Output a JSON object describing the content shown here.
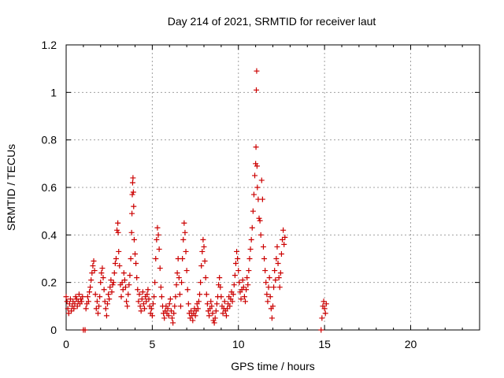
{
  "chart_data": {
    "type": "scatter",
    "title": "Day 214 of 2021, SRMTID for receiver laut",
    "xlabel": "GPS time / hours",
    "ylabel": "SRMTID / TECUs",
    "xlim": [
      0,
      24
    ],
    "ylim": [
      0,
      1.2
    ],
    "xticks": [
      0,
      5,
      10,
      15,
      20
    ],
    "yticks": [
      0,
      0.2,
      0.4,
      0.6,
      0.8,
      1,
      1.2
    ],
    "ytick_labels": [
      "0",
      "0.2",
      "0.4",
      "0.6",
      "0.8",
      "1",
      "1.2"
    ],
    "grid": true,
    "series": [
      {
        "name": "SRMTID",
        "color": "#cc0000",
        "marker": "plus",
        "points": [
          [
            0.0,
            0.14
          ],
          [
            0.05,
            0.12
          ],
          [
            0.1,
            0.09
          ],
          [
            0.15,
            0.07
          ],
          [
            0.2,
            0.11
          ],
          [
            0.25,
            0.13
          ],
          [
            0.3,
            0.08
          ],
          [
            0.35,
            0.1
          ],
          [
            0.4,
            0.12
          ],
          [
            0.45,
            0.09
          ],
          [
            0.5,
            0.11
          ],
          [
            0.55,
            0.14
          ],
          [
            0.6,
            0.13
          ],
          [
            0.65,
            0.1
          ],
          [
            0.7,
            0.12
          ],
          [
            0.75,
            0.15
          ],
          [
            0.8,
            0.11
          ],
          [
            0.85,
            0.13
          ],
          [
            0.9,
            0.12
          ],
          [
            0.95,
            0.14
          ],
          [
            1.0,
            0.0
          ],
          [
            1.1,
            0.0
          ],
          [
            1.15,
            0.09
          ],
          [
            1.2,
            0.11
          ],
          [
            1.25,
            0.14
          ],
          [
            1.3,
            0.12
          ],
          [
            1.35,
            0.16
          ],
          [
            1.4,
            0.18
          ],
          [
            1.45,
            0.21
          ],
          [
            1.5,
            0.24
          ],
          [
            1.55,
            0.27
          ],
          [
            1.6,
            0.29
          ],
          [
            1.65,
            0.25
          ],
          [
            1.7,
            0.15
          ],
          [
            1.75,
            0.09
          ],
          [
            1.8,
            0.12
          ],
          [
            1.85,
            0.07
          ],
          [
            1.9,
            0.1
          ],
          [
            1.95,
            0.14
          ],
          [
            2.0,
            0.2
          ],
          [
            2.05,
            0.24
          ],
          [
            2.1,
            0.26
          ],
          [
            2.15,
            0.22
          ],
          [
            2.2,
            0.17
          ],
          [
            2.25,
            0.12
          ],
          [
            2.3,
            0.09
          ],
          [
            2.35,
            0.06
          ],
          [
            2.4,
            0.11
          ],
          [
            2.45,
            0.15
          ],
          [
            2.5,
            0.13
          ],
          [
            2.55,
            0.18
          ],
          [
            2.6,
            0.21
          ],
          [
            2.65,
            0.16
          ],
          [
            2.7,
            0.19
          ],
          [
            2.75,
            0.2
          ],
          [
            2.8,
            0.24
          ],
          [
            2.85,
            0.28
          ],
          [
            2.9,
            0.3
          ],
          [
            2.95,
            0.42
          ],
          [
            3.0,
            0.45
          ],
          [
            3.02,
            0.41
          ],
          [
            3.05,
            0.33
          ],
          [
            3.1,
            0.27
          ],
          [
            3.15,
            0.19
          ],
          [
            3.2,
            0.14
          ],
          [
            3.25,
            0.2
          ],
          [
            3.3,
            0.17
          ],
          [
            3.35,
            0.24
          ],
          [
            3.4,
            0.21
          ],
          [
            3.45,
            0.18
          ],
          [
            3.5,
            0.12
          ],
          [
            3.55,
            0.1
          ],
          [
            3.6,
            0.15
          ],
          [
            3.65,
            0.19
          ],
          [
            3.7,
            0.23
          ],
          [
            3.75,
            0.3
          ],
          [
            3.8,
            0.41
          ],
          [
            3.82,
            0.49
          ],
          [
            3.84,
            0.57
          ],
          [
            3.86,
            0.62
          ],
          [
            3.88,
            0.64
          ],
          [
            3.9,
            0.58
          ],
          [
            3.92,
            0.52
          ],
          [
            3.95,
            0.38
          ],
          [
            4.0,
            0.32
          ],
          [
            4.05,
            0.28
          ],
          [
            4.1,
            0.22
          ],
          [
            4.15,
            0.17
          ],
          [
            4.2,
            0.12
          ],
          [
            4.25,
            0.15
          ],
          [
            4.3,
            0.1
          ],
          [
            4.35,
            0.08
          ],
          [
            4.4,
            0.13
          ],
          [
            4.45,
            0.16
          ],
          [
            4.5,
            0.11
          ],
          [
            4.55,
            0.09
          ],
          [
            4.6,
            0.14
          ],
          [
            4.65,
            0.12
          ],
          [
            4.7,
            0.15
          ],
          [
            4.75,
            0.17
          ],
          [
            4.8,
            0.13
          ],
          [
            4.85,
            0.1
          ],
          [
            4.9,
            0.07
          ],
          [
            4.95,
            0.09
          ],
          [
            5.0,
            0.06
          ],
          [
            5.05,
            0.11
          ],
          [
            5.1,
            0.14
          ],
          [
            5.15,
            0.2
          ],
          [
            5.2,
            0.3
          ],
          [
            5.25,
            0.38
          ],
          [
            5.3,
            0.43
          ],
          [
            5.35,
            0.4
          ],
          [
            5.4,
            0.34
          ],
          [
            5.45,
            0.26
          ],
          [
            5.5,
            0.18
          ],
          [
            5.55,
            0.14
          ],
          [
            5.6,
            0.1
          ],
          [
            5.65,
            0.07
          ],
          [
            5.7,
            0.05
          ],
          [
            5.75,
            0.08
          ],
          [
            5.8,
            0.1
          ],
          [
            5.85,
            0.07
          ],
          [
            5.9,
            0.09
          ],
          [
            5.95,
            0.06
          ],
          [
            6.0,
            0.11
          ],
          [
            6.05,
            0.13
          ],
          [
            6.1,
            0.08
          ],
          [
            6.15,
            0.05
          ],
          [
            6.2,
            0.03
          ],
          [
            6.25,
            0.07
          ],
          [
            6.3,
            0.1
          ],
          [
            6.35,
            0.14
          ],
          [
            6.4,
            0.19
          ],
          [
            6.45,
            0.24
          ],
          [
            6.5,
            0.3
          ],
          [
            6.55,
            0.22
          ],
          [
            6.6,
            0.15
          ],
          [
            6.65,
            0.1
          ],
          [
            6.7,
            0.2
          ],
          [
            6.75,
            0.3
          ],
          [
            6.8,
            0.38
          ],
          [
            6.85,
            0.45
          ],
          [
            6.9,
            0.41
          ],
          [
            6.95,
            0.33
          ],
          [
            7.0,
            0.25
          ],
          [
            7.05,
            0.17
          ],
          [
            7.1,
            0.11
          ],
          [
            7.15,
            0.07
          ],
          [
            7.2,
            0.05
          ],
          [
            7.25,
            0.08
          ],
          [
            7.3,
            0.06
          ],
          [
            7.35,
            0.04
          ],
          [
            7.4,
            0.07
          ],
          [
            7.45,
            0.09
          ],
          [
            7.5,
            0.06
          ],
          [
            7.55,
            0.08
          ],
          [
            7.6,
            0.11
          ],
          [
            7.65,
            0.09
          ],
          [
            7.7,
            0.12
          ],
          [
            7.75,
            0.15
          ],
          [
            7.8,
            0.2
          ],
          [
            7.85,
            0.27
          ],
          [
            7.9,
            0.33
          ],
          [
            7.95,
            0.38
          ],
          [
            8.0,
            0.35
          ],
          [
            8.05,
            0.29
          ],
          [
            8.1,
            0.22
          ],
          [
            8.15,
            0.15
          ],
          [
            8.2,
            0.11
          ],
          [
            8.25,
            0.08
          ],
          [
            8.3,
            0.06
          ],
          [
            8.35,
            0.09
          ],
          [
            8.4,
            0.12
          ],
          [
            8.45,
            0.1
          ],
          [
            8.5,
            0.07
          ],
          [
            8.55,
            0.04
          ],
          [
            8.6,
            0.03
          ],
          [
            8.65,
            0.05
          ],
          [
            8.7,
            0.08
          ],
          [
            8.75,
            0.11
          ],
          [
            8.8,
            0.14
          ],
          [
            8.85,
            0.19
          ],
          [
            8.9,
            0.22
          ],
          [
            8.95,
            0.18
          ],
          [
            9.0,
            0.14
          ],
          [
            9.05,
            0.1
          ],
          [
            9.1,
            0.07
          ],
          [
            9.15,
            0.09
          ],
          [
            9.2,
            0.12
          ],
          [
            9.25,
            0.08
          ],
          [
            9.3,
            0.06
          ],
          [
            9.35,
            0.09
          ],
          [
            9.4,
            0.11
          ],
          [
            9.45,
            0.14
          ],
          [
            9.5,
            0.1
          ],
          [
            9.55,
            0.13
          ],
          [
            9.6,
            0.16
          ],
          [
            9.65,
            0.12
          ],
          [
            9.7,
            0.15
          ],
          [
            9.75,
            0.19
          ],
          [
            9.8,
            0.23
          ],
          [
            9.85,
            0.28
          ],
          [
            9.9,
            0.33
          ],
          [
            9.95,
            0.3
          ],
          [
            10.0,
            0.25
          ],
          [
            10.05,
            0.2
          ],
          [
            10.1,
            0.16
          ],
          [
            10.15,
            0.13
          ],
          [
            10.2,
            0.17
          ],
          [
            10.25,
            0.21
          ],
          [
            10.3,
            0.18
          ],
          [
            10.35,
            0.14
          ],
          [
            10.4,
            0.12
          ],
          [
            10.45,
            0.17
          ],
          [
            10.5,
            0.22
          ],
          [
            10.55,
            0.19
          ],
          [
            10.6,
            0.25
          ],
          [
            10.65,
            0.3
          ],
          [
            10.7,
            0.34
          ],
          [
            10.75,
            0.38
          ],
          [
            10.8,
            0.43
          ],
          [
            10.85,
            0.5
          ],
          [
            10.9,
            0.57
          ],
          [
            10.95,
            0.65
          ],
          [
            11.0,
            0.7
          ],
          [
            11.02,
            0.77
          ],
          [
            11.04,
            1.01
          ],
          [
            11.06,
            1.09
          ],
          [
            11.08,
            0.69
          ],
          [
            11.1,
            0.6
          ],
          [
            11.15,
            0.55
          ],
          [
            11.2,
            0.47
          ],
          [
            11.25,
            0.46
          ],
          [
            11.3,
            0.4
          ],
          [
            11.35,
            0.63
          ],
          [
            11.4,
            0.55
          ],
          [
            11.45,
            0.35
          ],
          [
            11.5,
            0.3
          ],
          [
            11.55,
            0.25
          ],
          [
            11.6,
            0.2
          ],
          [
            11.65,
            0.15
          ],
          [
            11.7,
            0.12
          ],
          [
            11.75,
            0.18
          ],
          [
            11.8,
            0.22
          ],
          [
            11.85,
            0.14
          ],
          [
            11.9,
            0.09
          ],
          [
            11.95,
            0.05
          ],
          [
            12.0,
            0.1
          ],
          [
            12.05,
            0.18
          ],
          [
            12.1,
            0.25
          ],
          [
            12.15,
            0.21
          ],
          [
            12.2,
            0.3
          ],
          [
            12.25,
            0.35
          ],
          [
            12.3,
            0.28
          ],
          [
            12.35,
            0.22
          ],
          [
            12.4,
            0.18
          ],
          [
            12.45,
            0.24
          ],
          [
            12.5,
            0.32
          ],
          [
            12.55,
            0.38
          ],
          [
            12.6,
            0.42
          ],
          [
            12.65,
            0.36
          ],
          [
            12.7,
            0.39
          ],
          [
            14.8,
            0.0
          ],
          [
            14.85,
            0.05
          ],
          [
            14.9,
            0.1
          ],
          [
            14.95,
            0.12
          ],
          [
            15.0,
            0.09
          ],
          [
            15.05,
            0.07
          ],
          [
            15.1,
            0.11
          ]
        ]
      }
    ]
  }
}
